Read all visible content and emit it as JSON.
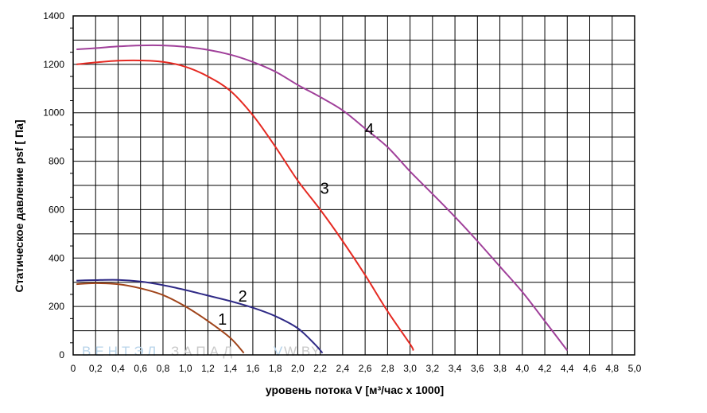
{
  "chart_data": {
    "type": "line",
    "title": "",
    "xlabel": "уровень потока  V [м³/час x 1000]",
    "ylabel": "Статическое давление  psf [ Па]",
    "xlim": [
      0,
      5.0
    ],
    "ylim": [
      0,
      1400
    ],
    "grid": true,
    "x_major_ticks": [
      "0",
      "0,2",
      "0,4",
      "0,6",
      "0,8",
      "1,0",
      "1,2",
      "1,4",
      "1,6",
      "1,8",
      "2,0",
      "2,2",
      "2,4",
      "2,6",
      "2,8",
      "3,0",
      "3,2",
      "3,4",
      "3,6",
      "3,8",
      "4,0",
      "4,2",
      "4,4",
      "4,6",
      "4,8",
      "5,0"
    ],
    "y_major_ticks": [
      "0",
      "200",
      "400",
      "600",
      "800",
      "1000",
      "1200",
      "1400"
    ],
    "series": [
      {
        "name": "1",
        "color": "#a0441a",
        "points": [
          [
            0.03,
            292
          ],
          [
            0.2,
            296
          ],
          [
            0.4,
            292
          ],
          [
            0.6,
            275
          ],
          [
            0.8,
            247
          ],
          [
            1.0,
            200
          ],
          [
            1.2,
            140
          ],
          [
            1.4,
            70
          ],
          [
            1.52,
            8
          ]
        ],
        "label_at": [
          1.29,
          125
        ]
      },
      {
        "name": "2",
        "color": "#2f2a86",
        "points": [
          [
            0.03,
            307
          ],
          [
            0.2,
            309
          ],
          [
            0.4,
            310
          ],
          [
            0.6,
            303
          ],
          [
            0.8,
            288
          ],
          [
            1.0,
            268
          ],
          [
            1.2,
            245
          ],
          [
            1.4,
            222
          ],
          [
            1.6,
            195
          ],
          [
            1.8,
            160
          ],
          [
            2.0,
            110
          ],
          [
            2.15,
            45
          ],
          [
            2.22,
            8
          ]
        ],
        "label_at": [
          1.47,
          220
        ]
      },
      {
        "name": "3",
        "color": "#e52a22",
        "points": [
          [
            0.03,
            1200
          ],
          [
            0.2,
            1208
          ],
          [
            0.4,
            1215
          ],
          [
            0.6,
            1216
          ],
          [
            0.8,
            1210
          ],
          [
            1.0,
            1190
          ],
          [
            1.2,
            1150
          ],
          [
            1.4,
            1090
          ],
          [
            1.6,
            990
          ],
          [
            1.8,
            860
          ],
          [
            2.0,
            720
          ],
          [
            2.2,
            600
          ],
          [
            2.4,
            470
          ],
          [
            2.6,
            330
          ],
          [
            2.8,
            180
          ],
          [
            3.0,
            45
          ],
          [
            3.03,
            18
          ]
        ],
        "label_at": [
          2.2,
          665
        ]
      },
      {
        "name": "4",
        "color": "#a0409a",
        "points": [
          [
            0.03,
            1262
          ],
          [
            0.2,
            1267
          ],
          [
            0.4,
            1274
          ],
          [
            0.6,
            1278
          ],
          [
            0.8,
            1278
          ],
          [
            1.0,
            1272
          ],
          [
            1.2,
            1260
          ],
          [
            1.4,
            1240
          ],
          [
            1.6,
            1210
          ],
          [
            1.8,
            1170
          ],
          [
            2.0,
            1115
          ],
          [
            2.2,
            1065
          ],
          [
            2.4,
            1010
          ],
          [
            2.6,
            935
          ],
          [
            2.8,
            858
          ],
          [
            3.0,
            758
          ],
          [
            3.2,
            665
          ],
          [
            3.4,
            570
          ],
          [
            3.6,
            470
          ],
          [
            3.8,
            365
          ],
          [
            4.0,
            260
          ],
          [
            4.2,
            140
          ],
          [
            4.4,
            18
          ]
        ],
        "label_at": [
          2.6,
          910
        ]
      }
    ]
  },
  "watermark": {
    "part1": "ВЕНТЭЛ",
    "part2": "ЗАПАД",
    "part3": "V",
    "part4": "W.BY",
    "color1": "#b8d4ea",
    "color2": "#c9c9c9"
  }
}
